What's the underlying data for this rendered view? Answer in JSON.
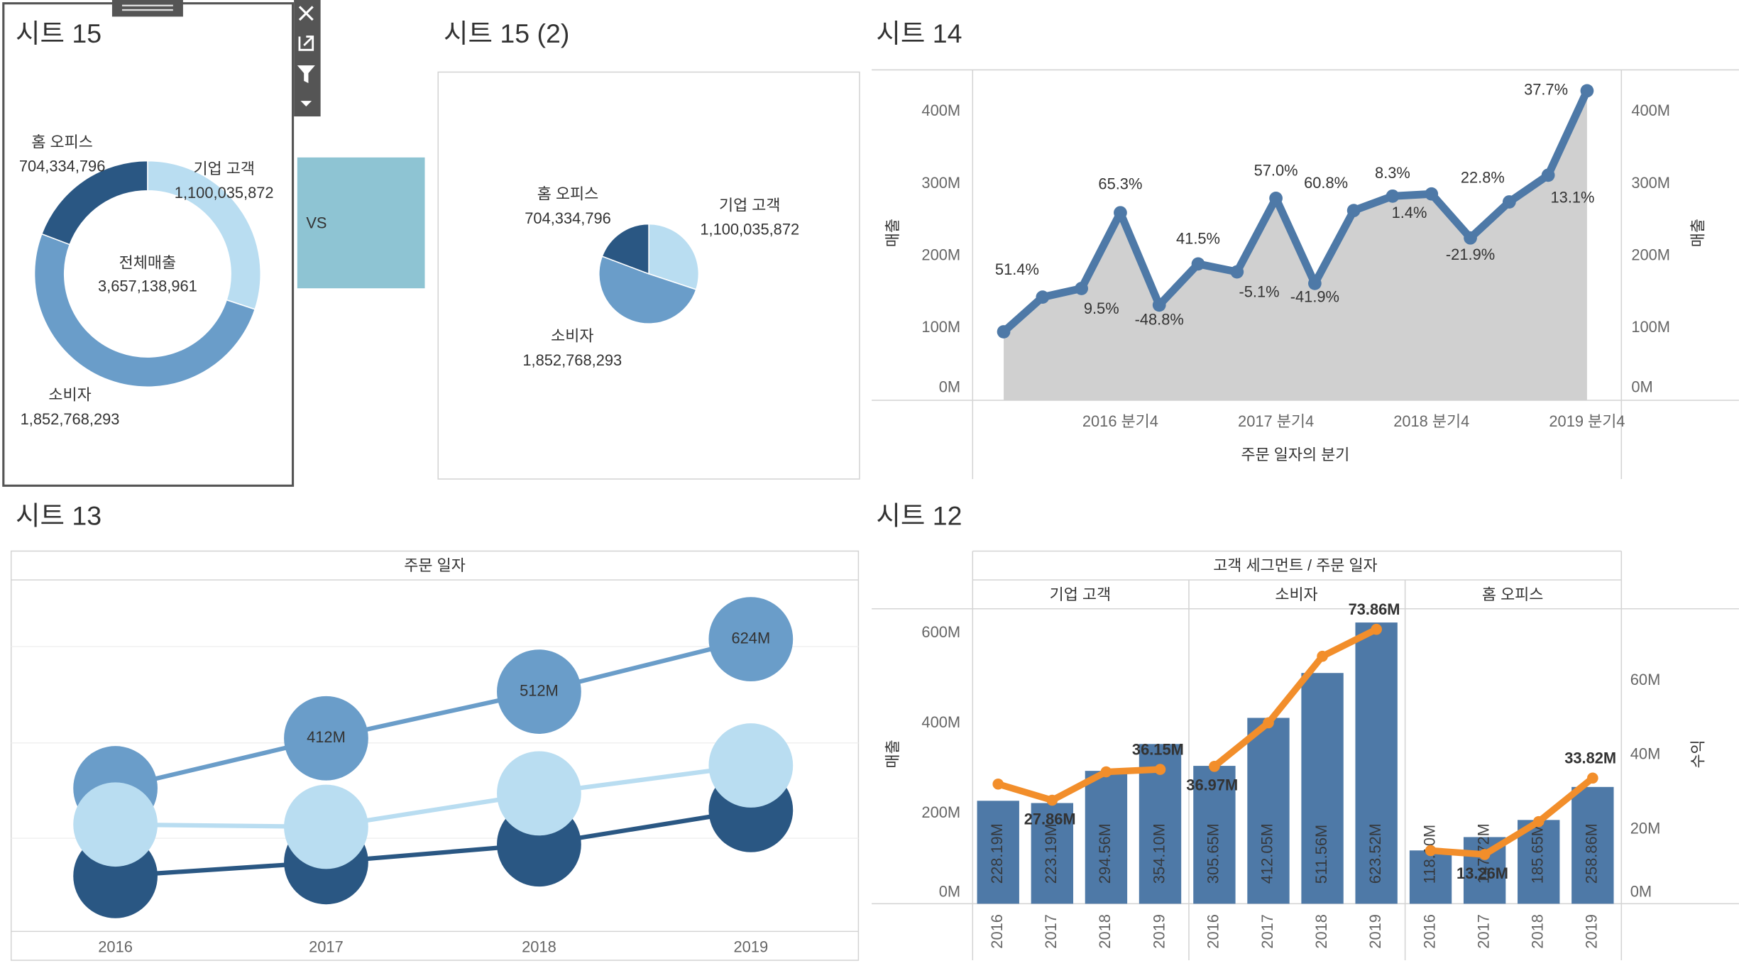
{
  "ui": {
    "vs_box": "VS"
  },
  "chart_data": [
    {
      "type": "donut",
      "title": "시트 15",
      "categories": [
        "기업 고객",
        "소비자",
        "홈 오피스"
      ],
      "values": [
        1100035872,
        1852768293,
        704334796
      ],
      "value_labels": [
        "1,100,035,872",
        "1,852,768,293",
        "704,334,796"
      ],
      "colors": [
        "#b9ddf1",
        "#6a9dc9",
        "#2a5783"
      ],
      "center_label": "전체매출",
      "total_label": "3,657,138,961"
    },
    {
      "type": "pie",
      "title": "시트 15 (2)",
      "categories": [
        "기업 고객",
        "소비자",
        "홈 오피스"
      ],
      "values": [
        1100035872,
        1852768293,
        704334796
      ],
      "value_labels": [
        "1,100,035,872",
        "1,852,768,293",
        "704,334,796"
      ],
      "colors": [
        "#b9ddf1",
        "#6a9dc9",
        "#2a5783"
      ]
    },
    {
      "type": "area-line",
      "title": "시트 14",
      "categories": [
        null,
        null,
        null,
        "2016 분기4",
        null,
        null,
        null,
        "2017 분기4",
        null,
        null,
        null,
        "2018 분기4",
        null,
        null,
        null,
        "2019 분기4"
      ],
      "values": [
        95,
        143,
        155,
        260,
        132,
        189,
        178,
        280,
        162,
        263,
        283,
        286,
        225,
        275,
        312,
        429
      ],
      "growth_labels": [
        null,
        "51.4%",
        "9.5%",
        "65.3%",
        "-48.8%",
        "41.5%",
        "-5.1%",
        "57.0%",
        "-41.9%",
        "60.8%",
        "8.3%",
        "1.4%",
        "-21.9%",
        "22.8%",
        "13.1%",
        "37.7%"
      ],
      "color": "#4e79a7",
      "area_color": "#d0d0d0",
      "xlabel": "주문 일자의 분기",
      "ylabel": "매출",
      "y2label": "매출",
      "ylim": [
        0,
        458
      ],
      "yticks": [
        {
          "value": 0,
          "label": "0M"
        },
        {
          "value": 100,
          "label": "100M"
        },
        {
          "value": 200,
          "label": "200M"
        },
        {
          "value": 300,
          "label": "300M"
        },
        {
          "value": 400,
          "label": "400M"
        }
      ],
      "y2lim": [
        0,
        458
      ],
      "y2ticks": [
        {
          "value": 0,
          "label": "0M"
        },
        {
          "value": 100,
          "label": "100M"
        },
        {
          "value": 200,
          "label": "200M"
        },
        {
          "value": 300,
          "label": "300M"
        },
        {
          "value": 400,
          "label": "400M"
        }
      ]
    },
    {
      "type": "bubble-line",
      "title": "시트 13",
      "header": "주문 일자",
      "categories": [
        "2016",
        "2017",
        "2018",
        "2019"
      ],
      "ylim": [
        0,
        750
      ],
      "series": [
        {
          "color": "#2a5783",
          "values": [
            118.1,
            147.72,
            185.65,
            258.86
          ]
        },
        {
          "color": "#6a9dc9",
          "values": [
            305.65,
            412.05,
            511.56,
            623.52
          ],
          "value_labels": [
            null,
            "412M",
            "512M",
            "624M"
          ]
        },
        {
          "color": "#b9ddf1",
          "values": [
            228.19,
            223.19,
            294.56,
            354.1
          ]
        }
      ]
    },
    {
      "type": "paned-bar-line",
      "title": "시트 12",
      "header": "고객 세그먼트 / 주문 일자",
      "panes": [
        "기업 고객",
        "소비자",
        "홈 오피스"
      ],
      "categories": [
        "2016",
        "2017",
        "2018",
        "2019"
      ],
      "ylabel": "매출",
      "y2label": "수익",
      "ylim": [
        0,
        654
      ],
      "yticks": [
        {
          "value": 0,
          "label": "0M"
        },
        {
          "value": 200,
          "label": "200M"
        },
        {
          "value": 400,
          "label": "400M"
        },
        {
          "value": 600,
          "label": "600M"
        }
      ],
      "y2lim": [
        0,
        79.4
      ],
      "y2ticks": [
        {
          "value": 0,
          "label": "0M"
        },
        {
          "value": 20,
          "label": "20M"
        },
        {
          "value": 40,
          "label": "40M"
        },
        {
          "value": 60,
          "label": "60M"
        }
      ],
      "series": [
        {
          "type": "bar",
          "color": "#4e79a7",
          "values": [
            [
              228.19,
              223.19,
              294.56,
              354.1
            ],
            [
              305.65,
              412.05,
              511.56,
              623.52
            ],
            [
              118.1,
              147.72,
              185.65,
              258.86
            ]
          ],
          "value_labels": [
            [
              "228.19M",
              "223.19M",
              "294.56M",
              "354.10M"
            ],
            [
              "305.65M",
              "412.05M",
              "511.56M",
              "623.52M"
            ],
            [
              "118.10M",
              "147.72M",
              "185.65M",
              "258.86M"
            ]
          ]
        },
        {
          "type": "line",
          "axis": "y2",
          "color": "#f28e2b",
          "label_color": "#e8262a",
          "values": [
            [
              32.2,
              27.86,
              35.5,
              36.15
            ],
            [
              36.97,
              48.7,
              66.6,
              73.86
            ],
            [
              14.3,
              13.26,
              22.1,
              33.82
            ]
          ],
          "value_labels": [
            [
              null,
              "27.86M",
              null,
              "36.15M"
            ],
            [
              "36.97M",
              null,
              null,
              "73.86M"
            ],
            [
              null,
              "13.26M",
              null,
              "33.82M"
            ]
          ]
        }
      ]
    }
  ]
}
